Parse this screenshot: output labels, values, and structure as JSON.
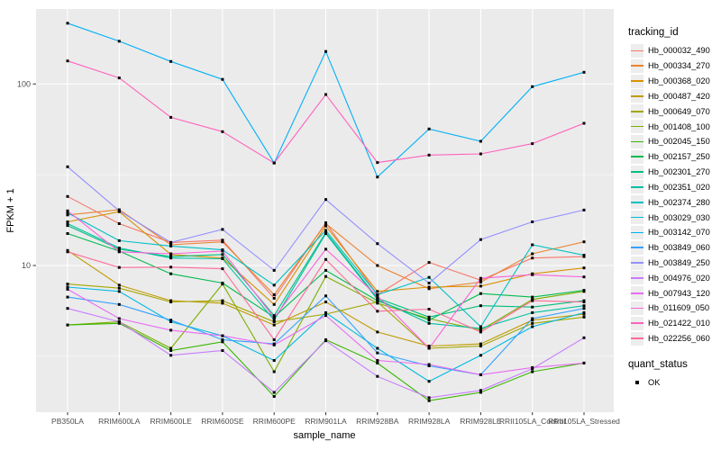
{
  "figure": {
    "y_axis_title": "FPKM + 1",
    "x_axis_title": "sample_name",
    "y_tick_labels": [
      "100",
      "10"
    ]
  },
  "legend": {
    "tracking_title": "tracking_id",
    "quant_title": "quant_status",
    "quant_ok_label": "OK",
    "quant_marker_icon": "black-square-point"
  },
  "chart_data": {
    "type": "line",
    "title": "",
    "xlabel": "sample_name",
    "ylabel": "FPKM + 1",
    "y_scale": "log10",
    "y_major_ticks": [
      10,
      100
    ],
    "y_minor_gridlines": [
      3.162,
      31.62
    ],
    "ylim": [
      1.6,
      260
    ],
    "grid": true,
    "panel_background": "#EBEBEB",
    "gridline_color": "#FFFFFF",
    "axis_text_color": "#4D4D4D",
    "marker": "black-square",
    "legend_position": "right",
    "x_categories": [
      "PB350LA",
      "RRIM600LA",
      "RRIM600LE",
      "RRIM600SE",
      "RRIM600PE",
      "RRIM901LA",
      "RRIM928BA",
      "RRIM928LA",
      "RRIM928LE",
      "RRII105LA_Control",
      "RRII105LA_Stressed"
    ],
    "series": [
      {
        "name": "Hb_000032_490",
        "color": "#F8766D",
        "values": [
          24,
          17,
          13.4,
          13.8,
          6.6,
          17.2,
          6.9,
          10.4,
          8.3,
          11.0,
          11.2
        ]
      },
      {
        "name": "Hb_000334_270",
        "color": "#EA8331",
        "values": [
          19,
          20.3,
          13.0,
          13.5,
          6.9,
          17.0,
          10.0,
          7.45,
          8.1,
          11.6,
          13.5
        ]
      },
      {
        "name": "Hb_000368_020",
        "color": "#D89000",
        "values": [
          17.4,
          19.8,
          11.5,
          11.0,
          6.1,
          16.5,
          7.2,
          7.6,
          7.7,
          9.0,
          9.7
        ]
      },
      {
        "name": "Hb_000487_420",
        "color": "#C09B00",
        "values": [
          12.1,
          7.8,
          6.4,
          6.2,
          4.7,
          6.3,
          4.3,
          3.6,
          3.7,
          5.0,
          5.4
        ]
      },
      {
        "name": "Hb_000649_070",
        "color": "#A3A500",
        "values": [
          7.9,
          7.5,
          6.3,
          6.4,
          4.9,
          5.4,
          6.3,
          3.5,
          3.6,
          4.8,
          5.2
        ]
      },
      {
        "name": "Hb_001408_100",
        "color": "#7CAE00",
        "values": [
          4.7,
          4.9,
          3.5,
          7.9,
          2.6,
          8.7,
          6.2,
          5.1,
          4.4,
          6.5,
          7.2
        ]
      },
      {
        "name": "Hb_002045_150",
        "color": "#39B600",
        "values": [
          4.7,
          4.8,
          3.4,
          3.8,
          1.9,
          3.9,
          2.9,
          1.8,
          2.0,
          2.6,
          2.9
        ]
      },
      {
        "name": "Hb_002157_250",
        "color": "#00BB4E",
        "values": [
          15,
          12.0,
          9.0,
          8.0,
          5.2,
          9.4,
          6.4,
          5.0,
          7.0,
          6.7,
          7.3
        ]
      },
      {
        "name": "Hb_002301_270",
        "color": "#00BF7D",
        "values": [
          16.6,
          12.3,
          11.2,
          11.5,
          5.3,
          15.2,
          6.6,
          5.2,
          6.0,
          5.9,
          6.4
        ]
      },
      {
        "name": "Hb_002351_020",
        "color": "#00C1A3",
        "values": [
          17,
          12.5,
          11.0,
          10.9,
          5.0,
          15.0,
          6.5,
          4.8,
          4.5,
          5.5,
          6.0
        ]
      },
      {
        "name": "Hb_002374_280",
        "color": "#00BFC4",
        "values": [
          19.5,
          13.7,
          12.8,
          12.2,
          7.8,
          15.6,
          6.9,
          8.6,
          4.6,
          13.0,
          11.4
        ]
      },
      {
        "name": "Hb_003029_030",
        "color": "#00BAE0",
        "values": [
          7.6,
          7.2,
          4.9,
          4.1,
          3.0,
          5.5,
          3.5,
          2.3,
          3.2,
          4.6,
          5.5
        ]
      },
      {
        "name": "Hb_003142_070",
        "color": "#00B0F6",
        "values": [
          216,
          172,
          133,
          106,
          36.7,
          151,
          30.7,
          56.5,
          48.3,
          96.6,
          116
        ]
      },
      {
        "name": "Hb_003849_060",
        "color": "#35A2FF",
        "values": [
          6.7,
          6.1,
          5.0,
          3.9,
          3.7,
          6.8,
          3.3,
          2.8,
          2.5,
          5.1,
          5.8
        ]
      },
      {
        "name": "Hb_003849_250",
        "color": "#9590FF",
        "values": [
          35,
          20,
          13.4,
          15.8,
          9.4,
          23.1,
          13.2,
          8.0,
          13.9,
          17.4,
          20.2
        ]
      },
      {
        "name": "Hb_004976_020",
        "color": "#C77CFF",
        "values": [
          5.8,
          4.9,
          3.2,
          3.4,
          2.0,
          3.85,
          2.45,
          1.87,
          2.05,
          2.7,
          4.0
        ]
      },
      {
        "name": "Hb_007943_120",
        "color": "#E76BF3",
        "values": [
          7.4,
          5.1,
          4.4,
          4.1,
          3.65,
          5.3,
          3.0,
          2.85,
          2.5,
          2.74,
          2.9
        ]
      },
      {
        "name": "Hb_011609_050",
        "color": "#FA62DB",
        "values": [
          20,
          11.9,
          11.6,
          12.0,
          5.15,
          12.3,
          6.8,
          3.5,
          8.5,
          8.9,
          8.65
        ]
      },
      {
        "name": "Hb_021422_010",
        "color": "#FF62BC",
        "values": [
          134,
          108,
          65.5,
          54.6,
          36.7,
          87.5,
          36.9,
          40.6,
          41.2,
          46.9,
          60.7
        ]
      },
      {
        "name": "Hb_022256_060",
        "color": "#FF6A98",
        "values": [
          11.9,
          9.75,
          9.8,
          9.6,
          3.9,
          10.8,
          5.6,
          5.75,
          4.3,
          6.4,
          6.3
        ]
      }
    ]
  }
}
